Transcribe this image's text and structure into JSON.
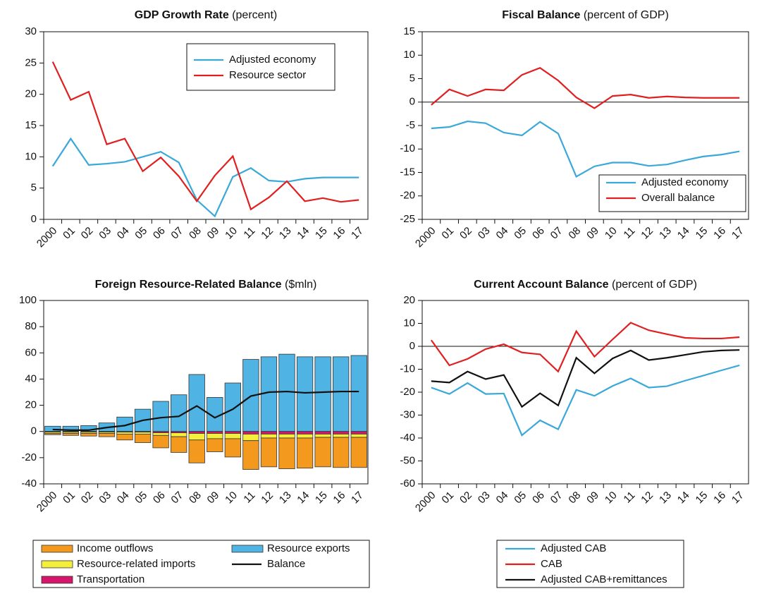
{
  "chart_data": [
    {
      "type": "line",
      "title": "GDP Growth Rate",
      "subtitle": "(percent)",
      "categories": [
        "2000",
        "01",
        "02",
        "03",
        "04",
        "05",
        "06",
        "07",
        "08",
        "09",
        "10",
        "11",
        "12",
        "13",
        "14",
        "15",
        "16",
        "17"
      ],
      "series": [
        {
          "name": "Adjusted economy",
          "color": "#3aa8d8",
          "values": [
            8.5,
            12.9,
            8.7,
            8.9,
            9.2,
            10,
            10.8,
            9.1,
            3.1,
            0.5,
            6.8,
            8.2,
            6.2,
            6,
            6.5,
            6.7,
            6.7,
            6.7
          ]
        },
        {
          "name": "Resource sector",
          "color": "#e02020",
          "values": [
            25.2,
            19.1,
            20.4,
            12,
            12.9,
            7.7,
            9.9,
            6.9,
            2.9,
            7,
            10.1,
            1.6,
            3.5,
            6.1,
            2.9,
            3.4,
            2.8,
            3.1
          ]
        }
      ],
      "ylim": [
        0,
        30
      ],
      "yticks": [
        0,
        5,
        10,
        15,
        20,
        25,
        30
      ],
      "legend": "upper right"
    },
    {
      "type": "line",
      "title": "Fiscal Balance",
      "subtitle": "(percent of  GDP)",
      "categories": [
        "2000",
        "01",
        "02",
        "03",
        "04",
        "05",
        "06",
        "07",
        "08",
        "09",
        "10",
        "11",
        "12",
        "13",
        "14",
        "15",
        "16",
        "17"
      ],
      "series": [
        {
          "name": "Adjusted economy",
          "color": "#3aa8d8",
          "values": [
            -5.6,
            -5.3,
            -4.1,
            -4.5,
            -6.5,
            -7.1,
            -4.2,
            -6.7,
            -15.9,
            -13.7,
            -12.9,
            -12.9,
            -13.6,
            -13.3,
            -12.4,
            -11.6,
            -11.2,
            -10.5
          ]
        },
        {
          "name": "Overall balance",
          "color": "#e02020",
          "values": [
            -0.6,
            2.7,
            1.3,
            2.7,
            2.5,
            5.8,
            7.3,
            4.6,
            1,
            -1.3,
            1.3,
            1.6,
            0.9,
            1.2,
            1,
            0.9,
            0.9,
            0.9
          ]
        }
      ],
      "ylim": [
        -25,
        15
      ],
      "yticks": [
        -25,
        -20,
        -15,
        -10,
        -5,
        0,
        5,
        10,
        15
      ],
      "zero_line": true,
      "legend": "lower right"
    },
    {
      "type": "bar",
      "stacked": true,
      "title": "Foreign Resource-Related Balance",
      "subtitle": "($mln)",
      "categories": [
        "2000",
        "01",
        "02",
        "03",
        "04",
        "05",
        "06",
        "07",
        "08",
        "09",
        "10",
        "11",
        "12",
        "13",
        "14",
        "15",
        "16",
        "17"
      ],
      "series": [
        {
          "name": "Resource exports",
          "color": "#4fb3e3",
          "values": [
            4,
            4,
            4.5,
            6.5,
            11,
            17,
            23,
            28,
            43.5,
            26,
            37,
            55,
            57,
            59,
            57,
            57,
            57,
            58
          ]
        },
        {
          "name": "Transportation",
          "color": "#d6156b",
          "values": [
            -0.5,
            -0.5,
            -0.5,
            -0.5,
            -0.5,
            -0.5,
            -1,
            -1,
            -1.5,
            -1.5,
            -1.5,
            -2,
            -2,
            -2,
            -2,
            -2,
            -2,
            -2
          ]
        },
        {
          "name": "Resource-related  imports",
          "color": "#f5ee3a",
          "values": [
            -1,
            -1,
            -1,
            -1,
            -1.5,
            -1.5,
            -2,
            -3,
            -5,
            -4,
            -4,
            -5,
            -3,
            -3,
            -3,
            -2.5,
            -2.5,
            -2.5
          ]
        },
        {
          "name": "Income outflows",
          "color": "#f39a1e",
          "values": [
            -1,
            -1.5,
            -2,
            -2.5,
            -4.5,
            -6.5,
            -9.5,
            -12,
            -17.5,
            -10,
            -14,
            -22,
            -22,
            -23.5,
            -23,
            -22.5,
            -23,
            -23
          ]
        },
        {
          "name": "Balance",
          "color": "#111111",
          "type": "line",
          "values": [
            1.5,
            1,
            1,
            3,
            4.5,
            8.5,
            10.5,
            11.5,
            19.5,
            10.5,
            17,
            27,
            30,
            30.5,
            29.5,
            30,
            30.5,
            30.5
          ]
        }
      ],
      "ylim": [
        -40,
        100
      ],
      "yticks": [
        -40,
        -20,
        0,
        20,
        40,
        60,
        80,
        100
      ],
      "legend": "below"
    },
    {
      "type": "line",
      "title": "Current Account Balance",
      "subtitle": "(percent of GDP)",
      "categories": [
        "2000",
        "01",
        "02",
        "03",
        "04",
        "05",
        "06",
        "07",
        "08",
        "09",
        "10",
        "11",
        "12",
        "13",
        "14",
        "15",
        "16",
        "17"
      ],
      "series": [
        {
          "name": "Adjusted CAB",
          "color": "#3aa8d8",
          "values": [
            -18,
            -20.8,
            -16,
            -20.8,
            -20.6,
            -38.8,
            -32.3,
            -36.2,
            -19,
            -21.6,
            -17.3,
            -14,
            -18,
            -17.4,
            -15,
            -12.8,
            -10.5,
            -8.3
          ]
        },
        {
          "name": "CAB",
          "color": "#e02020",
          "values": [
            2.7,
            -8.3,
            -5.5,
            -1.2,
            0.9,
            -2.7,
            -3.5,
            -11,
            6.6,
            -4.5,
            3,
            10.3,
            7,
            5.3,
            3.7,
            3.4,
            3.4,
            4
          ]
        },
        {
          "name": "Adjusted CAB+remittances",
          "color": "#111111",
          "values": [
            -15.2,
            -15.8,
            -11,
            -14.3,
            -12.5,
            -26.4,
            -20.5,
            -25.8,
            -5,
            -11.8,
            -5.3,
            -1.8,
            -6,
            -5,
            -3.7,
            -2.4,
            -1.8,
            -1.6
          ]
        }
      ],
      "ylim": [
        -60,
        20
      ],
      "yticks": [
        -60,
        -50,
        -40,
        -30,
        -20,
        -10,
        0,
        10,
        20
      ],
      "zero_line": true,
      "legend": "below"
    }
  ]
}
